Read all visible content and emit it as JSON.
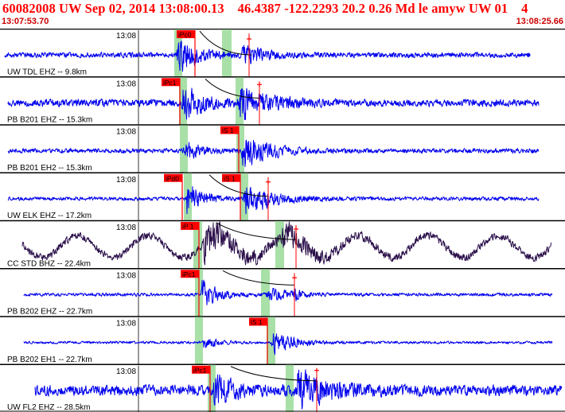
{
  "header": {
    "title": "60082008 UW Sep 02, 2014 13:08:00.13    46.4387 -122.2293 20.2 0.26 Md le amyw UW 01    4",
    "start_time": "13:07:53.70",
    "end_time": "13:08:25.66"
  },
  "colors": {
    "title": "#ff0000",
    "trace_default": "#0000ee",
    "trace_dark": "#2a0f4a",
    "pick_box": "#ff0000",
    "pick_line": "#ff0000",
    "pick_window": "#a8e0a8",
    "separator": "#000000",
    "coda": "#000000"
  },
  "icons": {
    "pick_marker": "red-plus-icon"
  },
  "panels": [
    {
      "time_label": "13:08",
      "station_label": "UW TDL EHZ -- 9.8km",
      "color": "trace",
      "base_amp": 4.0,
      "picks": [
        {
          "label": "iPc0",
          "x": 222
        }
      ],
      "windows": [
        [
          219,
          229
        ],
        [
          279,
          291
        ]
      ],
      "extra_lines": [
        313
      ],
      "plus_markers": [
        {
          "x": 313,
          "y": 13
        }
      ],
      "coda": {
        "x0": 251,
        "y0": 0.05,
        "x1": 316,
        "y1": 0.55
      },
      "events": [
        {
          "x": 224,
          "amp": 30,
          "decay": 22
        },
        {
          "x": 304,
          "amp": 14,
          "decay": 25
        }
      ],
      "trace_start": 6,
      "trace_end": 664,
      "end_dot": true
    },
    {
      "time_label": "13:08",
      "station_label": "PB B201 EHZ -- 15.3km",
      "color": "trace",
      "base_amp": 5.5,
      "picks": [
        {
          "label": "iPc1",
          "x": 203
        }
      ],
      "windows": [
        [
          225,
          235
        ],
        [
          296,
          306
        ]
      ],
      "extra_lines": [
        326
      ],
      "plus_markers": [
        {
          "x": 326,
          "y": 10
        }
      ],
      "coda": {
        "x0": 258,
        "y0": 0.05,
        "x1": 326,
        "y1": 0.45
      },
      "events": [
        {
          "x": 230,
          "amp": 26,
          "decay": 25
        },
        {
          "x": 302,
          "amp": 24,
          "decay": 35
        }
      ],
      "trace_start": 10,
      "trace_end": 677,
      "end_dot": false
    },
    {
      "time_label": "13:08",
      "station_label": "PB B201 EH2 -- 15.3km",
      "color": "trace",
      "base_amp": 3.5,
      "picks": [
        {
          "label": "iS 1",
          "x": 277
        }
      ],
      "windows": [
        [
          226,
          236
        ],
        [
          297,
          307
        ]
      ],
      "extra_lines": [],
      "plus_markers": [],
      "coda": null,
      "events": [
        {
          "x": 232,
          "amp": 14,
          "decay": 20
        },
        {
          "x": 305,
          "amp": 27,
          "decay": 30
        }
      ],
      "trace_start": 10,
      "trace_end": 677,
      "end_dot": false
    },
    {
      "time_label": "13:08",
      "station_label": "UW ELK EHZ -- 17.2km",
      "color": "trace",
      "base_amp": 3.0,
      "picks": [
        {
          "label": "iPd0",
          "x": 206
        },
        {
          "label": "iS 1",
          "x": 279
        }
      ],
      "windows": [
        [
          231,
          241
        ],
        [
          302,
          312
        ]
      ],
      "extra_lines": [
        337
      ],
      "plus_markers": [
        {
          "x": 337,
          "y": 12
        }
      ],
      "coda": {
        "x0": 263,
        "y0": 0.05,
        "x1": 337,
        "y1": 0.5
      },
      "events": [
        {
          "x": 235,
          "amp": 26,
          "decay": 18
        },
        {
          "x": 308,
          "amp": 26,
          "decay": 32
        }
      ],
      "trace_start": 10,
      "trace_end": 677,
      "end_dot": false
    },
    {
      "time_label": "13:08",
      "station_label": "CC STD BHZ -- 22.4km",
      "color": "dark",
      "base_amp": 6.0,
      "picks": [
        {
          "label": "iP 1",
          "x": 227
        }
      ],
      "windows": [
        [
          243,
          254
        ],
        [
          346,
          357
        ]
      ],
      "extra_lines": [
        372
      ],
      "plus_markers": [
        {
          "x": 372,
          "y": 11
        }
      ],
      "coda": {
        "x0": 272,
        "y0": 0.05,
        "x1": 372,
        "y1": 0.4
      },
      "events": [
        {
          "x": 256,
          "amp": 26,
          "decay": 45
        },
        {
          "x": 355,
          "amp": 14,
          "decay": 40
        }
      ],
      "long_wave": {
        "amp": 14,
        "period": 88
      },
      "trace_start": 28,
      "trace_end": 693,
      "end_dot": false
    },
    {
      "time_label": "13:08",
      "station_label": "PB B202 EHZ -- 22.7km",
      "color": "trace",
      "base_amp": 2.5,
      "picks": [
        {
          "label": "iPc1",
          "x": 227
        }
      ],
      "windows": [
        [
          245,
          255
        ],
        [
          328,
          339
        ]
      ],
      "extra_lines": [
        370
      ],
      "plus_markers": [
        {
          "x": 370,
          "y": 12
        }
      ],
      "coda": {
        "x0": 280,
        "y0": 0.05,
        "x1": 370,
        "y1": 0.35
      },
      "events": [
        {
          "x": 254,
          "amp": 20,
          "decay": 20
        },
        {
          "x": 336,
          "amp": 10,
          "decay": 25
        },
        {
          "x": 370,
          "amp": 8,
          "decay": 6
        }
      ],
      "trace_start": 30,
      "trace_end": 694,
      "end_dot": false
    },
    {
      "time_label": "13:08",
      "station_label": "PB B202 EH1 -- 22.7km",
      "color": "trace",
      "base_amp": 2.0,
      "picks": [
        {
          "label": "iS 1",
          "x": 313
        }
      ],
      "windows": [
        [
          245,
          255
        ],
        [
          335,
          346
        ]
      ],
      "extra_lines": [],
      "plus_markers": [],
      "coda": null,
      "events": [
        {
          "x": 256,
          "amp": 9,
          "decay": 16
        },
        {
          "x": 343,
          "amp": 17,
          "decay": 24
        }
      ],
      "trace_start": 30,
      "trace_end": 694,
      "end_dot": false
    },
    {
      "time_label": "13:08",
      "station_label": "UW FL2 EHZ -- 28.5km",
      "color": "trace",
      "base_amp": 8.0,
      "picks": [
        {
          "label": "iPc1",
          "x": 241
        }
      ],
      "windows": [
        [
          261,
          271
        ],
        [
          359,
          369
        ]
      ],
      "extra_lines": [
        398
      ],
      "plus_markers": [
        {
          "x": 398,
          "y": 8
        }
      ],
      "coda": {
        "x0": 290,
        "y0": 0.05,
        "x1": 398,
        "y1": 0.35
      },
      "events": [
        {
          "x": 269,
          "amp": 24,
          "decay": 22
        },
        {
          "x": 374,
          "amp": 26,
          "decay": 40
        }
      ],
      "trace_start": 44,
      "trace_end": 706,
      "end_dot": false
    }
  ]
}
